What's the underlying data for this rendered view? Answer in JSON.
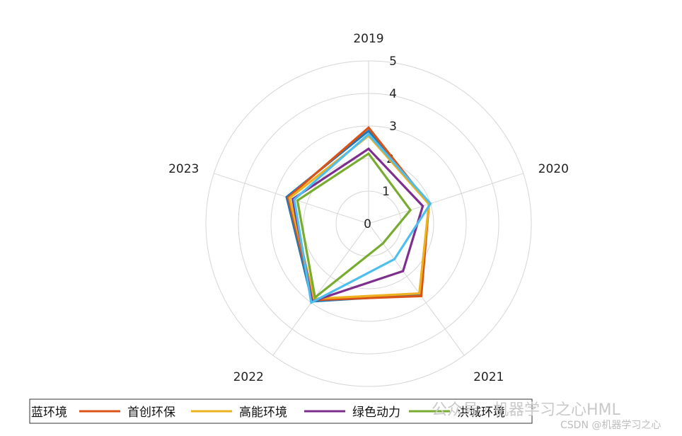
{
  "chart_data": {
    "type": "radar",
    "axes": [
      "2019",
      "2020",
      "2021",
      "2022",
      "2023"
    ],
    "r_ticks": [
      "0",
      "1",
      "2",
      "3",
      "4",
      "5"
    ],
    "rlim": [
      0,
      5
    ],
    "grid": true,
    "legend_position": "bottom",
    "series": [
      {
        "name": "蓝环境",
        "color": "#1f77b4",
        "values": [
          2.85,
          1.95,
          2.7,
          2.95,
          2.65
        ]
      },
      {
        "name": "首创环保",
        "color": "#d95319",
        "values": [
          2.95,
          1.95,
          2.75,
          2.9,
          2.6
        ]
      },
      {
        "name": "高能环境",
        "color": "#edb120",
        "values": [
          2.7,
          1.95,
          2.65,
          2.85,
          2.55
        ]
      },
      {
        "name": "绿色动力",
        "color": "#7e2f8e",
        "values": [
          2.3,
          1.75,
          1.8,
          2.95,
          2.45
        ]
      },
      {
        "name": "洪城环境",
        "color": "#77ac30",
        "values": [
          2.15,
          1.35,
          0.75,
          2.8,
          2.3
        ]
      },
      {
        "name": "",
        "color": "#4dbeee",
        "values": [
          2.75,
          2.0,
          1.35,
          3.0,
          2.4
        ]
      }
    ]
  },
  "watermark": {
    "line1": "公众号 · 机器学习之心HML",
    "line2": "CSDN @机器学习之心"
  }
}
